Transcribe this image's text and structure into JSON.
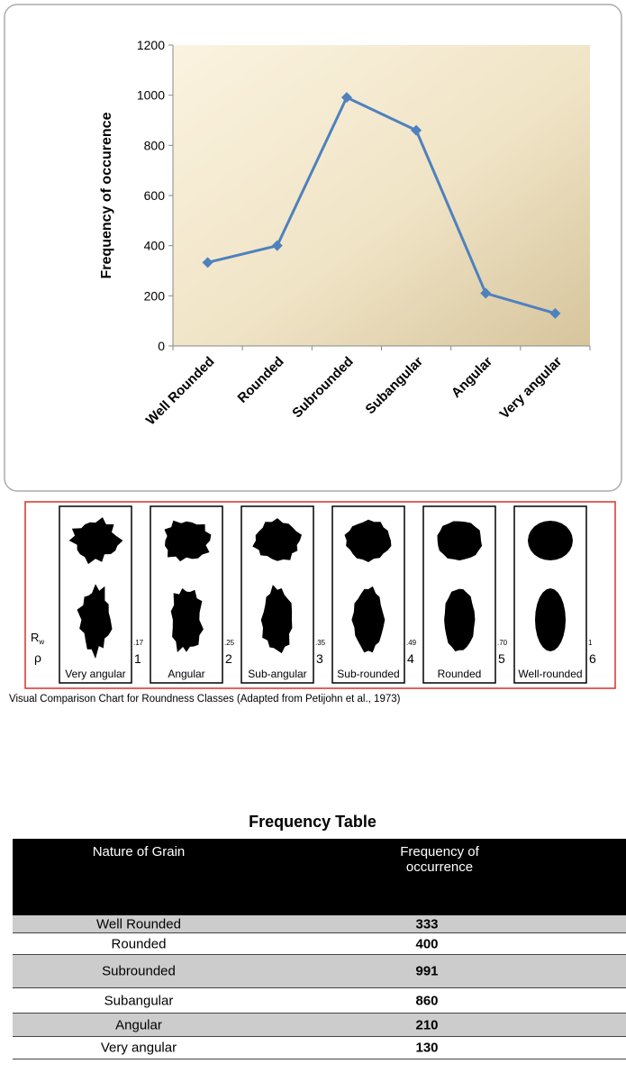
{
  "chart_data": {
    "type": "line",
    "y_label": "Frequency of occurence",
    "categories": [
      "Well Rounded",
      "Rounded",
      "Subrounded",
      "Subangular",
      "Angular",
      "Very angular"
    ],
    "values": [
      333,
      400,
      991,
      860,
      210,
      130
    ],
    "color": "#4f81bd",
    "ylim": [
      0,
      1200
    ],
    "yticks": [
      0,
      200,
      400,
      600,
      800,
      1000,
      1200
    ],
    "grid": false
  },
  "figure": {
    "rw_symbol": "R",
    "rw_subscript": "w",
    "rho_symbol": "ρ",
    "classes": [
      {
        "label": "Very angular",
        "rw": ".17",
        "rho": 1
      },
      {
        "label": "Angular",
        "rw": ".25",
        "rho": 2
      },
      {
        "label": "Sub-angular",
        "rw": ".35",
        "rho": 3
      },
      {
        "label": "Sub-rounded",
        "rw": ".49",
        "rho": 4
      },
      {
        "label": "Rounded",
        "rw": ".70",
        "rho": 5
      },
      {
        "label": "Well-rounded",
        "rw": "1",
        "rho": 6
      }
    ],
    "caption": "Visual Comparison Chart for Roundness Classes (Adapted from Petijohn et al., 1973)"
  },
  "table": {
    "title": "Frequency Table",
    "headers": [
      "Nature of Grain",
      "Frequency of occurrence"
    ],
    "rows": [
      [
        "Well Rounded",
        "333"
      ],
      [
        "Rounded",
        "400"
      ],
      [
        "Subrounded",
        "991"
      ],
      [
        "Subangular",
        "860"
      ],
      [
        "Angular",
        "210"
      ],
      [
        "Very angular",
        "130"
      ]
    ]
  }
}
